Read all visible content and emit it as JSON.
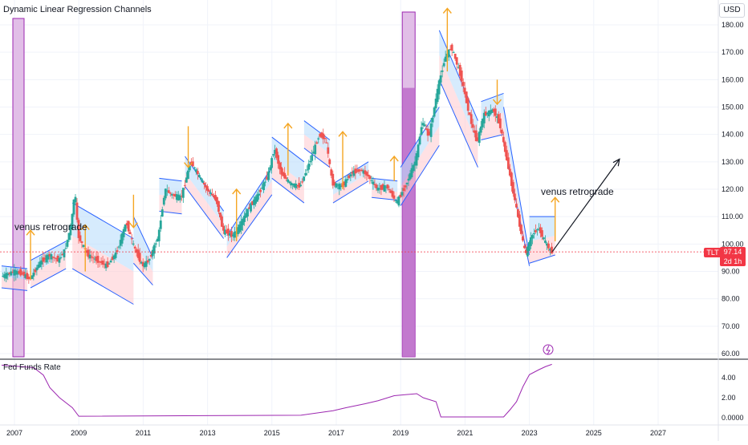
{
  "header": {
    "title": "Dynamic Linear Regression Channels",
    "currency": "USD"
  },
  "indicator": {
    "title": "Fed Funds Rate"
  },
  "last_price": {
    "symbol": "TLT",
    "price": "97.14",
    "countdown": "2d 1h"
  },
  "annotations": {
    "left_text": "venus retrograde",
    "right_text": "venus retrograde"
  },
  "colors": {
    "up_candle": "#26a69a",
    "down_candle": "#ef5350",
    "channel_up_fill": "#bbdefb",
    "channel_down_fill": "#ffcdd2",
    "channel_line": "#2962ff",
    "arrow": "#f5a623",
    "venus_bar": "#9c27b0",
    "fed_line": "#9c27b0",
    "price_line": "#f23645",
    "projection": "#131722"
  },
  "chart_data": [
    {
      "type": "line",
      "title": "Dynamic Linear Regression Channels",
      "symbol": "TLT",
      "currency": "USD",
      "ylim": [
        60,
        185
      ],
      "xlim": [
        2006.6,
        2028.0
      ],
      "y_ticks": [
        "180.00",
        "170.00",
        "160.00",
        "150.00",
        "140.00",
        "130.00",
        "120.00",
        "110.00",
        "100.00",
        "90.00",
        "80.00",
        "70.00",
        "60.00"
      ],
      "x_ticks": [
        "2007",
        "2009",
        "2011",
        "2013",
        "2015",
        "2017",
        "2019",
        "2021",
        "2023",
        "2025",
        "2027"
      ],
      "grid": true,
      "last_value": 97.14,
      "series": [
        {
          "points": [
            [
              2006.6,
              88
            ],
            [
              2007.0,
              90
            ],
            [
              2007.3,
              89
            ],
            [
              2007.5,
              87
            ],
            [
              2007.8,
              93
            ],
            [
              2008.1,
              96
            ],
            [
              2008.4,
              94
            ],
            [
              2008.6,
              98
            ],
            [
              2008.8,
              108
            ],
            [
              2008.9,
              120
            ],
            [
              2009.0,
              103
            ],
            [
              2009.3,
              96
            ],
            [
              2009.6,
              94
            ],
            [
              2009.9,
              92
            ],
            [
              2010.2,
              97
            ],
            [
              2010.5,
              108
            ],
            [
              2010.7,
              100
            ],
            [
              2011.0,
              92
            ],
            [
              2011.2,
              94
            ],
            [
              2011.5,
              103
            ],
            [
              2011.7,
              120
            ],
            [
              2011.9,
              118
            ],
            [
              2012.2,
              117
            ],
            [
              2012.5,
              130
            ],
            [
              2012.8,
              124
            ],
            [
              2013.0,
              120
            ],
            [
              2013.3,
              116
            ],
            [
              2013.5,
              105
            ],
            [
              2013.8,
              103
            ],
            [
              2014.0,
              106
            ],
            [
              2014.3,
              113
            ],
            [
              2014.6,
              118
            ],
            [
              2014.9,
              125
            ],
            [
              2015.1,
              135
            ],
            [
              2015.3,
              126
            ],
            [
              2015.6,
              122
            ],
            [
              2015.9,
              121
            ],
            [
              2016.2,
              130
            ],
            [
              2016.5,
              140
            ],
            [
              2016.7,
              138
            ],
            [
              2016.9,
              122
            ],
            [
              2017.2,
              121
            ],
            [
              2017.5,
              126
            ],
            [
              2017.8,
              127
            ],
            [
              2018.0,
              125
            ],
            [
              2018.3,
              120
            ],
            [
              2018.6,
              121
            ],
            [
              2018.9,
              115
            ],
            [
              2019.2,
              122
            ],
            [
              2019.5,
              131
            ],
            [
              2019.7,
              145
            ],
            [
              2019.9,
              139
            ],
            [
              2020.2,
              158
            ],
            [
              2020.4,
              168
            ],
            [
              2020.6,
              172
            ],
            [
              2020.9,
              161
            ],
            [
              2021.2,
              145
            ],
            [
              2021.4,
              137
            ],
            [
              2021.6,
              147
            ],
            [
              2021.9,
              149
            ],
            [
              2022.1,
              144
            ],
            [
              2022.3,
              132
            ],
            [
              2022.5,
              120
            ],
            [
              2022.7,
              108
            ],
            [
              2022.9,
              96
            ],
            [
              2023.1,
              103
            ],
            [
              2023.3,
              106
            ],
            [
              2023.5,
              101
            ],
            [
              2023.7,
              97.14
            ]
          ]
        }
      ],
      "projection": [
        [
          2023.7,
          97
        ],
        [
          2025.8,
          131
        ]
      ]
    },
    {
      "type": "line",
      "title": "Fed Funds Rate",
      "ylim": [
        0,
        5.5
      ],
      "y_ticks": [
        "4.00",
        "2.00",
        "0.0000"
      ],
      "series": [
        {
          "points": [
            [
              2006.6,
              5.25
            ],
            [
              2007.6,
              5.0
            ],
            [
              2007.9,
              4.25
            ],
            [
              2008.1,
              3.0
            ],
            [
              2008.4,
              2.0
            ],
            [
              2008.8,
              1.0
            ],
            [
              2009.0,
              0.15
            ],
            [
              2015.9,
              0.25
            ],
            [
              2016.9,
              0.7
            ],
            [
              2017.3,
              1.0
            ],
            [
              2017.9,
              1.4
            ],
            [
              2018.3,
              1.7
            ],
            [
              2018.8,
              2.2
            ],
            [
              2019.5,
              2.4
            ],
            [
              2019.7,
              2.0
            ],
            [
              2020.1,
              1.6
            ],
            [
              2020.25,
              0.08
            ],
            [
              2022.2,
              0.08
            ],
            [
              2022.4,
              0.8
            ],
            [
              2022.6,
              1.6
            ],
            [
              2022.8,
              3.1
            ],
            [
              2023.0,
              4.3
            ],
            [
              2023.3,
              4.8
            ],
            [
              2023.5,
              5.1
            ],
            [
              2023.7,
              5.33
            ]
          ]
        }
      ]
    }
  ]
}
